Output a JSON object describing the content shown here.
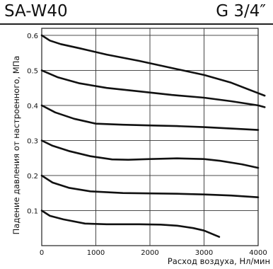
{
  "header": {
    "model": "SA-W40",
    "size": "G 3/4″"
  },
  "chart_data": {
    "type": "line",
    "title": "",
    "xlabel": "Расход воздуха, Нл/мин",
    "ylabel": "Падение давления от настроенного, МПа",
    "xlim": [
      0,
      4000
    ],
    "ylim": [
      0,
      0.62
    ],
    "xticks": [
      "0",
      "1000",
      "2000",
      "3000",
      "4000"
    ],
    "yticks": [
      "0.1",
      "0.2",
      "0.3",
      "0.4",
      "0.5",
      "0.6"
    ],
    "grid": true,
    "series": [
      {
        "points": [
          [
            0,
            0.1
          ],
          [
            150,
            0.085
          ],
          [
            400,
            0.075
          ],
          [
            800,
            0.063
          ],
          [
            1200,
            0.061
          ],
          [
            1800,
            0.061
          ],
          [
            2200,
            0.06
          ],
          [
            2500,
            0.057
          ],
          [
            2800,
            0.05
          ],
          [
            3000,
            0.043
          ],
          [
            3200,
            0.03
          ],
          [
            3280,
            0.025
          ]
        ]
      },
      {
        "points": [
          [
            0,
            0.2
          ],
          [
            200,
            0.18
          ],
          [
            500,
            0.165
          ],
          [
            900,
            0.155
          ],
          [
            1500,
            0.15
          ],
          [
            2000,
            0.149
          ],
          [
            2500,
            0.148
          ],
          [
            3000,
            0.146
          ],
          [
            3500,
            0.143
          ],
          [
            4000,
            0.138
          ]
        ]
      },
      {
        "points": [
          [
            0,
            0.3
          ],
          [
            200,
            0.285
          ],
          [
            500,
            0.27
          ],
          [
            900,
            0.255
          ],
          [
            1300,
            0.246
          ],
          [
            1600,
            0.245
          ],
          [
            2000,
            0.247
          ],
          [
            2500,
            0.249
          ],
          [
            3000,
            0.247
          ],
          [
            3300,
            0.242
          ],
          [
            3700,
            0.232
          ],
          [
            4000,
            0.222
          ]
        ]
      },
      {
        "points": [
          [
            0,
            0.4
          ],
          [
            250,
            0.38
          ],
          [
            600,
            0.362
          ],
          [
            1000,
            0.348
          ],
          [
            1500,
            0.345
          ],
          [
            2000,
            0.343
          ],
          [
            2500,
            0.341
          ],
          [
            3000,
            0.338
          ],
          [
            3500,
            0.334
          ],
          [
            4000,
            0.33
          ]
        ]
      },
      {
        "points": [
          [
            0,
            0.5
          ],
          [
            300,
            0.48
          ],
          [
            700,
            0.463
          ],
          [
            1200,
            0.45
          ],
          [
            1800,
            0.44
          ],
          [
            2400,
            0.43
          ],
          [
            3000,
            0.422
          ],
          [
            3500,
            0.412
          ],
          [
            4000,
            0.4
          ],
          [
            4120,
            0.395
          ]
        ]
      },
      {
        "points": [
          [
            0,
            0.6
          ],
          [
            150,
            0.585
          ],
          [
            350,
            0.575
          ],
          [
            700,
            0.563
          ],
          [
            1200,
            0.545
          ],
          [
            1800,
            0.527
          ],
          [
            2400,
            0.507
          ],
          [
            3000,
            0.487
          ],
          [
            3500,
            0.465
          ],
          [
            4000,
            0.435
          ],
          [
            4120,
            0.428
          ]
        ]
      }
    ]
  }
}
